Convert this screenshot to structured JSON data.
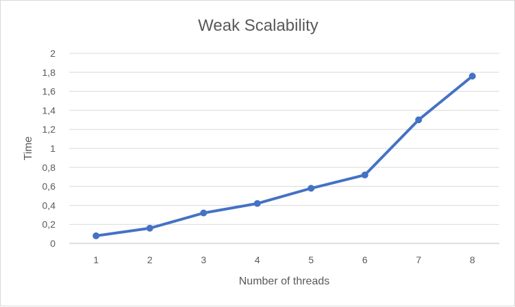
{
  "chart_data": {
    "type": "line",
    "title": "Weak Scalability",
    "xlabel": "Number of threads",
    "ylabel": "Time",
    "categories": [
      "1",
      "2",
      "3",
      "4",
      "5",
      "6",
      "7",
      "8"
    ],
    "series": [
      {
        "values": [
          0.08,
          0.16,
          0.32,
          0.42,
          0.58,
          0.72,
          1.3,
          1.76
        ]
      }
    ],
    "ylim": [
      0,
      2
    ],
    "yticks": [
      "0",
      "0,2",
      "0,4",
      "0,6",
      "0,8",
      "1",
      "1,2",
      "1,4",
      "1,6",
      "1,8",
      "2"
    ],
    "grid": true,
    "legend": "none",
    "colors": {
      "series": "#4472c4",
      "grid": "#d9d9d9",
      "text": "#595959"
    }
  }
}
